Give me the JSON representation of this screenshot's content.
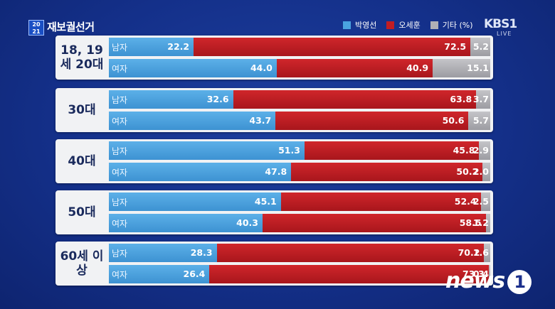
{
  "broadcast": {
    "logo_text": "20 21",
    "title": "재보궐선거",
    "channel": "KBS1",
    "channel_sub": "LIVE",
    "watermark": "news",
    "watermark_badge": "1"
  },
  "legend": [
    {
      "label": "박영선",
      "color": "#4aa3e0"
    },
    {
      "label": "오세훈",
      "color": "#c21d23"
    },
    {
      "label": "기타 (%)",
      "color": "#b0b0b6"
    }
  ],
  "chart_data": {
    "type": "bar",
    "stacked": true,
    "orientation": "horizontal",
    "unit": "%",
    "series_names": [
      "박영선",
      "오세훈",
      "기타"
    ],
    "groups": [
      {
        "label": "18, 19세 20대",
        "rows": [
          {
            "gender": "남자",
            "values": [
              22.2,
              72.5,
              5.2
            ]
          },
          {
            "gender": "여자",
            "values": [
              44.0,
              40.9,
              15.1
            ]
          }
        ]
      },
      {
        "label": "30대",
        "rows": [
          {
            "gender": "남자",
            "values": [
              32.6,
              63.8,
              3.7
            ]
          },
          {
            "gender": "여자",
            "values": [
              43.7,
              50.6,
              5.7
            ]
          }
        ]
      },
      {
        "label": "40대",
        "rows": [
          {
            "gender": "남자",
            "values": [
              51.3,
              45.8,
              2.9
            ]
          },
          {
            "gender": "여자",
            "values": [
              47.8,
              50.2,
              2.0
            ]
          }
        ]
      },
      {
        "label": "50대",
        "rows": [
          {
            "gender": "남자",
            "values": [
              45.1,
              52.4,
              2.5
            ]
          },
          {
            "gender": "여자",
            "values": [
              40.3,
              58.5,
              1.2
            ]
          }
        ]
      },
      {
        "label": "60세 이상",
        "rows": [
          {
            "gender": "남자",
            "values": [
              28.3,
              70.2,
              1.6
            ]
          },
          {
            "gender": "여자",
            "values": [
              26.4,
              73.3,
              0.4
            ]
          }
        ]
      }
    ]
  }
}
